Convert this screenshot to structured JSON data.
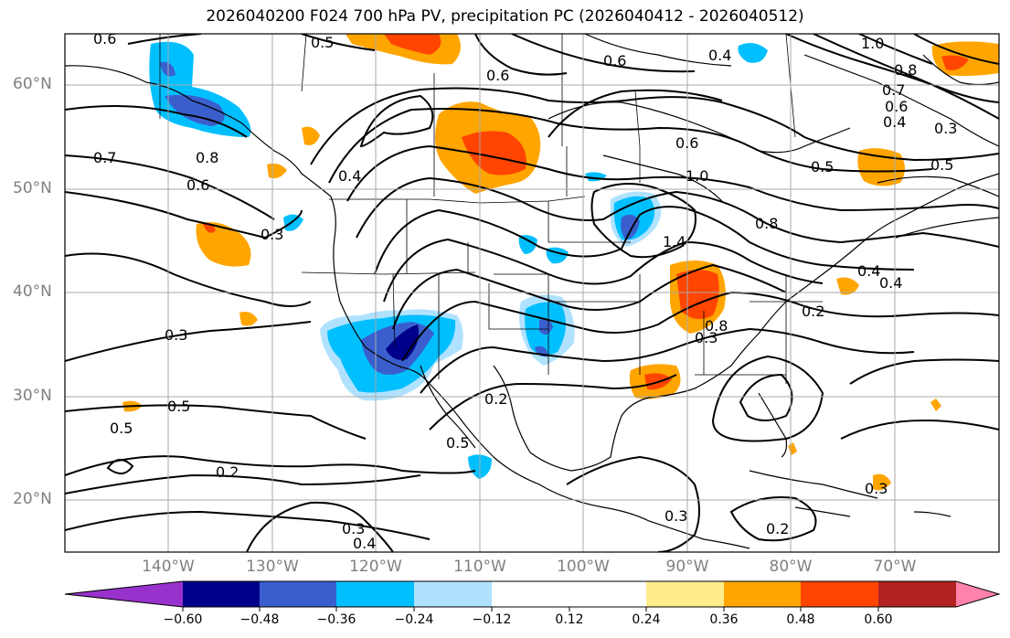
{
  "title": "2026040200 F024 700 hPa PV, precipitation PC (2026040412 - 2026040512)",
  "lat_labels": [
    "60°N",
    "50°N",
    "40°N",
    "30°N",
    "20°N"
  ],
  "lon_labels": [
    "140°W",
    "130°W",
    "120°W",
    "110°W",
    "100°W",
    "90°W",
    "80°W",
    "70°W"
  ],
  "contour_labels": [
    "0.6",
    "0.5",
    "0.6",
    "0.6",
    "0.4",
    "1.0",
    "0.8",
    "0.7",
    "0.3",
    "0.7",
    "0.8",
    "0.6",
    "0.4",
    "0.3",
    "0.4",
    "0.5",
    "0.6",
    "1.0",
    "0.5",
    "0.6",
    "0.8",
    "0.4",
    "1.4",
    "0.8",
    "0.3",
    "0.2",
    "0.3",
    "0.5",
    "0.5",
    "0.2",
    "0.5",
    "0.3",
    "0.4",
    "0.3",
    "0.2",
    "0.2",
    "0.3",
    "0.4"
  ],
  "colorbar": {
    "ticks": [
      "−0.60",
      "−0.48",
      "−0.36",
      "−0.24",
      "−0.12",
      "0.12",
      "0.24",
      "0.36",
      "0.48",
      "0.60"
    ],
    "colors": [
      "#9932cc",
      "#00008b",
      "#3a5fcd",
      "#00bfff",
      "#b0e2ff",
      "#ffffff",
      "#ffec8b",
      "#ffa500",
      "#ff4500",
      "#b22222",
      "#ff82ab"
    ]
  }
}
